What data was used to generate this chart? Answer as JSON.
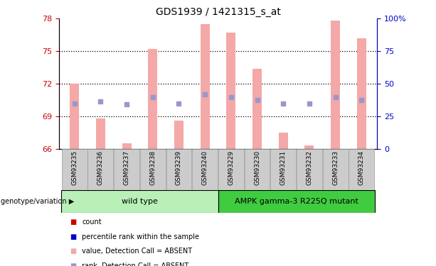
{
  "title": "GDS1939 / 1421315_s_at",
  "samples": [
    "GSM93235",
    "GSM93236",
    "GSM93237",
    "GSM93238",
    "GSM93239",
    "GSM93240",
    "GSM93229",
    "GSM93230",
    "GSM93231",
    "GSM93232",
    "GSM93233",
    "GSM93234"
  ],
  "bar_values": [
    72.0,
    68.8,
    66.5,
    75.2,
    68.6,
    77.5,
    76.7,
    73.4,
    67.5,
    66.3,
    77.8,
    76.2
  ],
  "dot_values": [
    70.2,
    70.4,
    70.1,
    70.8,
    70.2,
    71.0,
    70.8,
    70.5,
    70.2,
    70.2,
    70.8,
    70.5
  ],
  "bar_color": "#f4a8a8",
  "dot_color": "#9898cc",
  "ylim_left": [
    66,
    78
  ],
  "yticks_left": [
    66,
    69,
    72,
    75,
    78
  ],
  "ylim_right": [
    0,
    100
  ],
  "yticks_right": [
    0,
    25,
    50,
    75,
    100
  ],
  "hlines": [
    69,
    72,
    75
  ],
  "group1_label": "wild type",
  "group2_label": "AMPK gamma-3 R225Q mutant",
  "group1_count": 6,
  "group2_count": 6,
  "group_label_prefix": "genotype/variation",
  "legend_items": [
    {
      "color": "#cc0000",
      "label": "count"
    },
    {
      "color": "#0000cc",
      "label": "percentile rank within the sample"
    },
    {
      "color": "#f4a8a8",
      "label": "value, Detection Call = ABSENT"
    },
    {
      "color": "#9898cc",
      "label": "rank, Detection Call = ABSENT"
    }
  ],
  "bar_width": 0.35,
  "left_tick_color": "#cc0000",
  "right_tick_color": "#0000cc",
  "group1_color": "#b8f0b8",
  "group2_color": "#40cc40",
  "xtick_bg_color": "#cccccc",
  "xtick_border_color": "#999999"
}
